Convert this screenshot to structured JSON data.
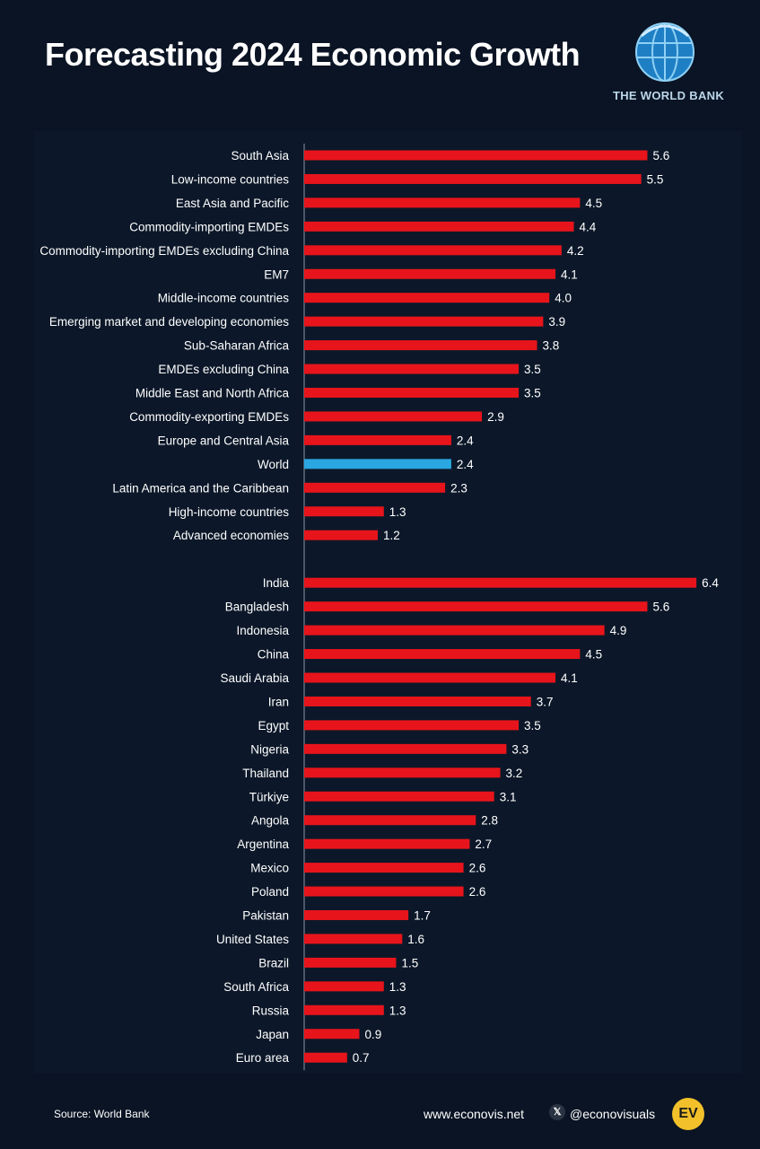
{
  "header": {
    "title": "Forecasting 2024 Economic Growth",
    "brand_name": "THE WORLD BANK"
  },
  "footer": {
    "source": "Source: World Bank",
    "website": "www.econovis.net",
    "handle": "@econovisuals",
    "x_icon": "x-icon",
    "logo_text": "EV"
  },
  "colors": {
    "background": "#0a1424",
    "bar": "#e8141b",
    "highlight": "#2aa7e0",
    "text": "#ffffff"
  },
  "chart_data": {
    "type": "bar",
    "orientation": "horizontal",
    "title": "Forecasting 2024 Economic Growth",
    "highlight": "World",
    "groups": [
      {
        "categories": [
          "South Asia",
          "Low-income countries",
          "East Asia and Pacific",
          "Commodity-importing EMDEs",
          "Commodity-importing EMDEs excluding China",
          "EM7",
          "Middle-income countries",
          "Emerging market and developing economies",
          "Sub-Saharan Africa",
          "EMDEs excluding China",
          "Middle East and North Africa",
          "Commodity-exporting EMDEs",
          "Europe and Central Asia",
          "World",
          "Latin America and the Caribbean",
          "High-income countries",
          "Advanced economies"
        ],
        "values": [
          5.6,
          5.5,
          4.5,
          4.4,
          4.2,
          4.1,
          4.0,
          3.9,
          3.8,
          3.5,
          3.5,
          2.9,
          2.4,
          2.4,
          2.3,
          1.3,
          1.2
        ],
        "labels": [
          "5.6",
          "5.5",
          "4.5",
          "4.4",
          "4.2",
          "4.1",
          "4.0",
          "3.9",
          "3.8",
          "3.5",
          "3.5",
          "2.9",
          "2.4",
          "2.4",
          "2.3",
          "1.3",
          "1.2"
        ]
      },
      {
        "categories": [
          "India",
          "Bangladesh",
          "Indonesia",
          "China",
          "Saudi Arabia",
          "Iran",
          "Egypt",
          "Nigeria",
          "Thailand",
          "Türkiye",
          "Angola",
          "Argentina",
          "Mexico",
          "Poland",
          "Pakistan",
          "United States",
          "Brazil",
          "South Africa",
          "Russia",
          "Japan",
          "Euro area"
        ],
        "values": [
          6.4,
          5.6,
          4.9,
          4.5,
          4.1,
          3.7,
          3.5,
          3.3,
          3.2,
          3.1,
          2.8,
          2.7,
          2.6,
          2.6,
          1.7,
          1.6,
          1.5,
          1.3,
          1.3,
          0.9,
          0.7
        ],
        "labels": [
          "6.4",
          "5.6",
          "4.9",
          "4.5",
          "4.1",
          "3.7",
          "3.5",
          "3.3",
          "3.2",
          "3.1",
          "2.8",
          "2.7",
          "2.6",
          "2.6",
          "1.7",
          "1.6",
          "1.5",
          "1.3",
          "1.3",
          "0.9",
          "0.7"
        ]
      }
    ]
  }
}
